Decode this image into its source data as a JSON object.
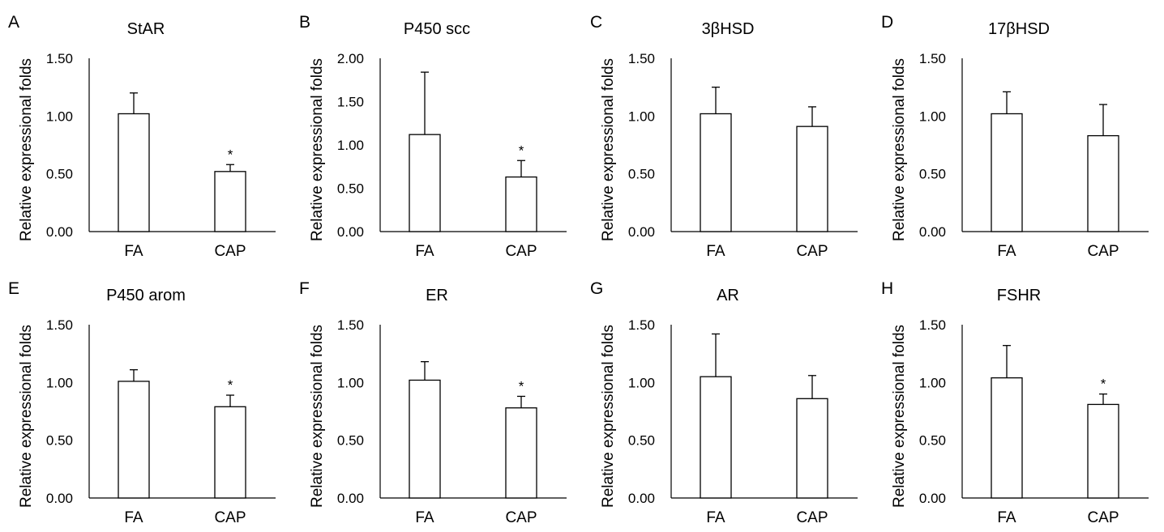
{
  "chart_data": [
    {
      "panel": "A",
      "title": "StAR",
      "type": "bar",
      "ylabel": "Relative expressional folds",
      "categories": [
        "FA",
        "CAP"
      ],
      "values": [
        1.02,
        0.52
      ],
      "errors": [
        0.18,
        0.06
      ],
      "significance": [
        "",
        "*"
      ],
      "ylim": [
        0,
        1.5
      ],
      "ticks": [
        "0.00",
        "0.50",
        "1.00",
        "1.50"
      ]
    },
    {
      "panel": "B",
      "title": "P450 scc",
      "type": "bar",
      "ylabel": "Relative expressional folds",
      "categories": [
        "FA",
        "CAP"
      ],
      "values": [
        1.12,
        0.63
      ],
      "errors": [
        0.72,
        0.19
      ],
      "significance": [
        "",
        "*"
      ],
      "ylim": [
        0,
        2.0
      ],
      "ticks": [
        "0.00",
        "0.50",
        "1.00",
        "1.50",
        "2.00"
      ]
    },
    {
      "panel": "C",
      "title": "3βHSD",
      "type": "bar",
      "ylabel": "Relative expressional folds",
      "categories": [
        "FA",
        "CAP"
      ],
      "values": [
        1.02,
        0.91
      ],
      "errors": [
        0.23,
        0.17
      ],
      "significance": [
        "",
        ""
      ],
      "ylim": [
        0,
        1.5
      ],
      "ticks": [
        "0.00",
        "0.50",
        "1.00",
        "1.50"
      ]
    },
    {
      "panel": "D",
      "title": "17βHSD",
      "type": "bar",
      "ylabel": "Relative expressional folds",
      "categories": [
        "FA",
        "CAP"
      ],
      "values": [
        1.02,
        0.83
      ],
      "errors": [
        0.19,
        0.27
      ],
      "significance": [
        "",
        ""
      ],
      "ylim": [
        0,
        1.5
      ],
      "ticks": [
        "0.00",
        "0.50",
        "1.00",
        "1.50"
      ],
      "category_color": "#777777"
    },
    {
      "panel": "E",
      "title": "P450 arom",
      "type": "bar",
      "ylabel": "Relative expressional folds",
      "categories": [
        "FA",
        "CAP"
      ],
      "values": [
        1.01,
        0.79
      ],
      "errors": [
        0.1,
        0.1
      ],
      "significance": [
        "",
        "*"
      ],
      "ylim": [
        0,
        1.5
      ],
      "ticks": [
        "0.00",
        "0.50",
        "1.00",
        "1.50"
      ]
    },
    {
      "panel": "F",
      "title": "ER",
      "type": "bar",
      "ylabel": "Relative expressional folds",
      "categories": [
        "FA",
        "CAP"
      ],
      "values": [
        1.02,
        0.78
      ],
      "errors": [
        0.16,
        0.1
      ],
      "significance": [
        "",
        "*"
      ],
      "ylim": [
        0,
        1.5
      ],
      "ticks": [
        "0.00",
        "0.50",
        "1.00",
        "1.50"
      ],
      "small_text": true
    },
    {
      "panel": "G",
      "title": "AR",
      "type": "bar",
      "ylabel": "Relative expressional folds",
      "categories": [
        "FA",
        "CAP"
      ],
      "values": [
        1.05,
        0.86
      ],
      "errors": [
        0.37,
        0.2
      ],
      "significance": [
        "",
        ""
      ],
      "ylim": [
        0,
        1.5
      ],
      "ticks": [
        "0.00",
        "0.50",
        "1.00",
        "1.50"
      ]
    },
    {
      "panel": "H",
      "title": "FSHR",
      "type": "bar",
      "ylabel": "Relative expressional folds",
      "categories": [
        "FA",
        "CAP"
      ],
      "values": [
        1.04,
        0.81
      ],
      "errors": [
        0.28,
        0.09
      ],
      "significance": [
        "",
        "*"
      ],
      "ylim": [
        0,
        1.5
      ],
      "ticks": [
        "0.00",
        "0.50",
        "1.00",
        "1.50"
      ]
    }
  ]
}
